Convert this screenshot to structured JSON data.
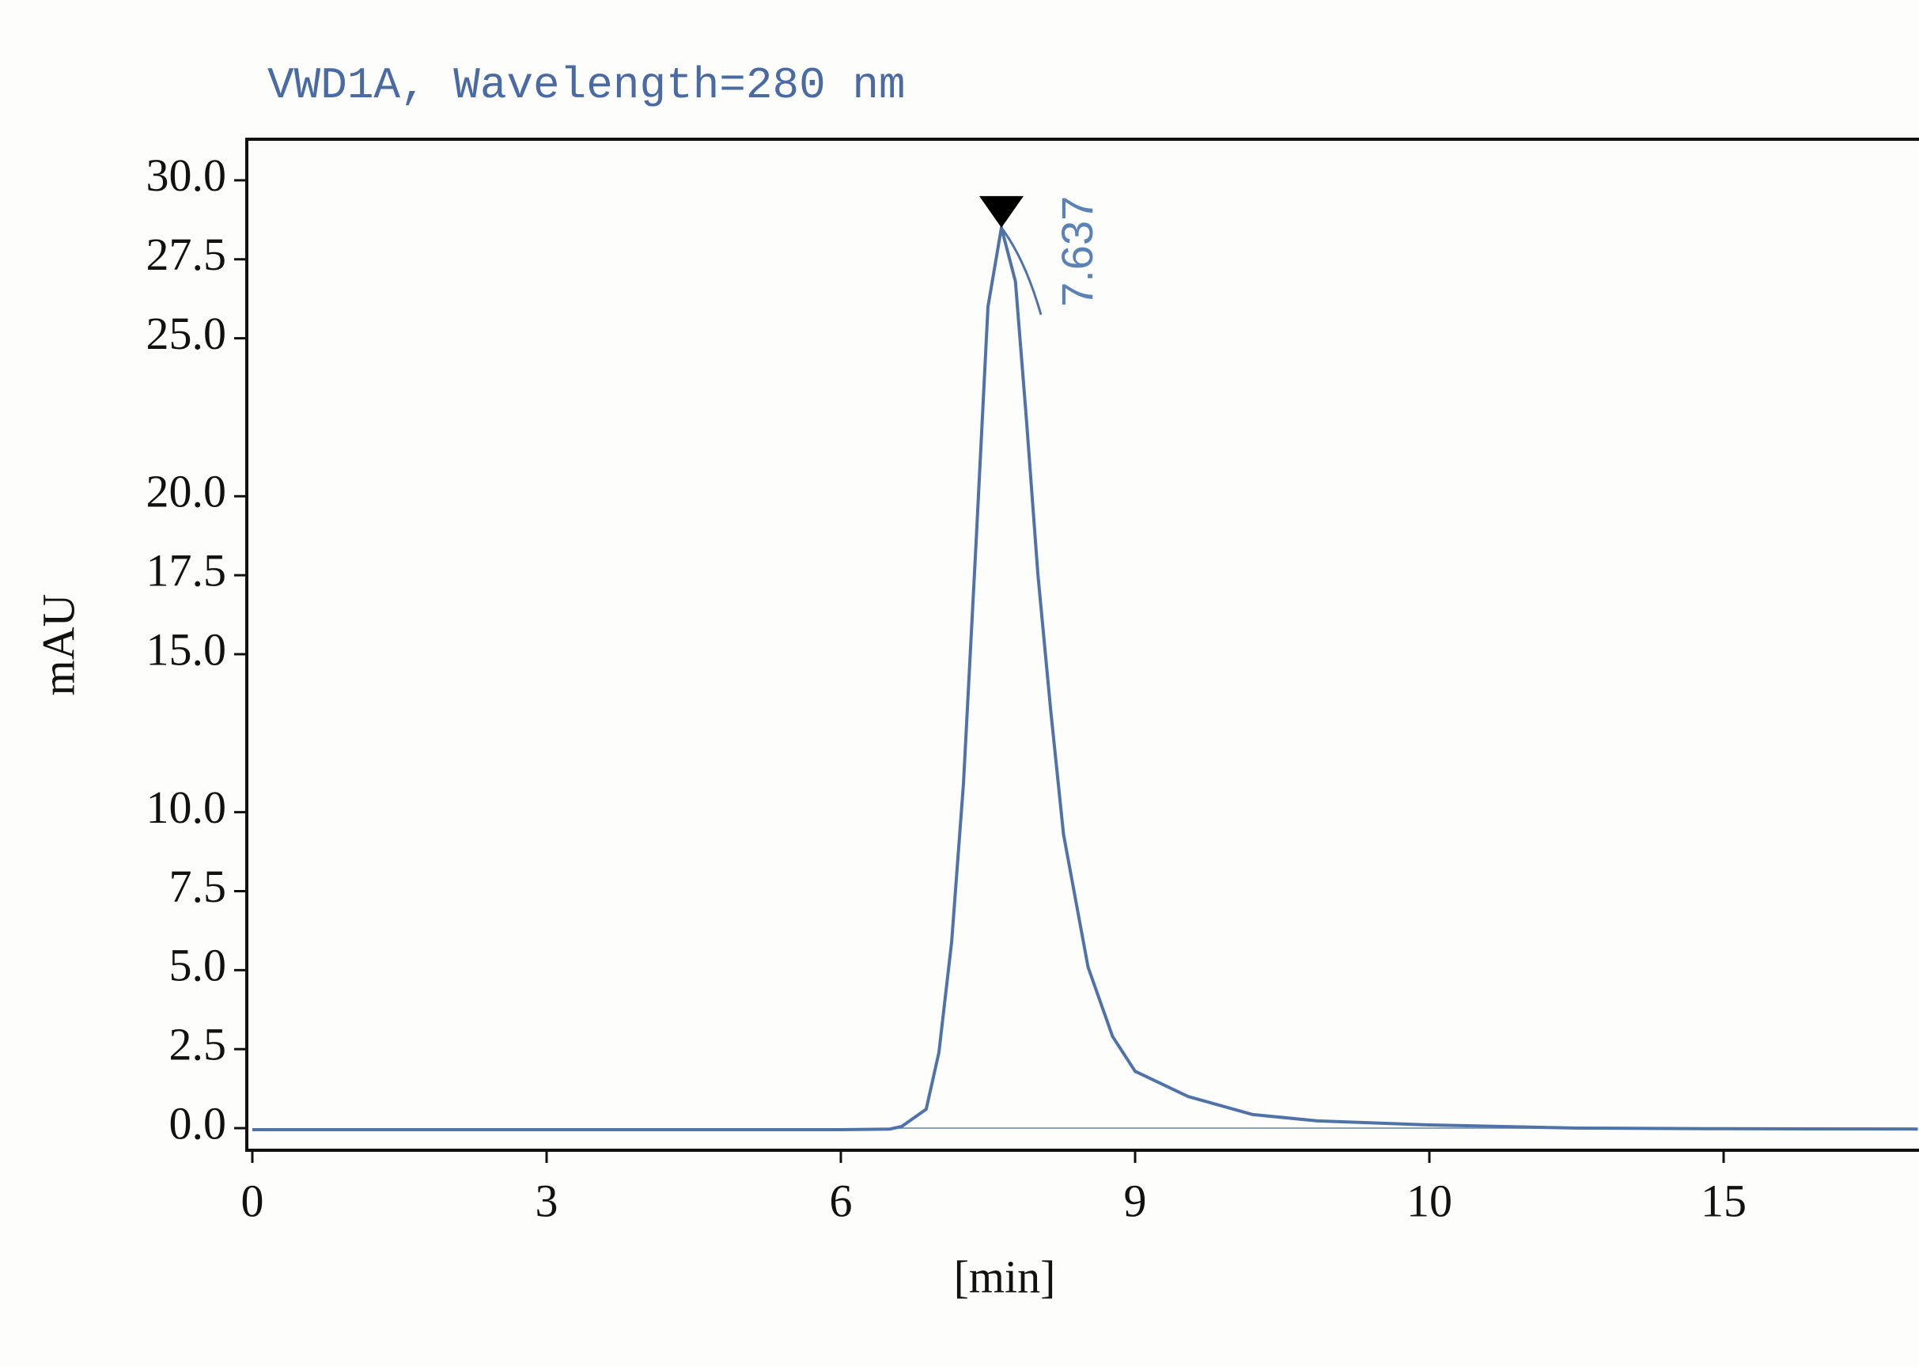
{
  "chart_data": {
    "type": "line",
    "title": "VWD1A, Wavelength=280 nm",
    "x_label": "[min]",
    "y_label": "mAU",
    "x": [
      0,
      6,
      6.5,
      6.62,
      6.87,
      7.0,
      7.13,
      7.25,
      7.38,
      7.5,
      7.637,
      7.78,
      7.89,
      8.01,
      8.14,
      8.27,
      8.52,
      8.77,
      9.0,
      9.18,
      9.4,
      9.62,
      10,
      12.5,
      15,
      18.3
    ],
    "series": [
      {
        "name": "VWD1A",
        "color": "#4f73a8",
        "values": [
          -0.05,
          -0.05,
          -0.03,
          0.05,
          0.6,
          2.4,
          5.9,
          10.9,
          18.6,
          26.0,
          28.5,
          26.8,
          22.5,
          17.5,
          13.2,
          9.3,
          5.1,
          2.9,
          1.8,
          1.0,
          0.43,
          0.23,
          0.1,
          0.0,
          -0.02,
          -0.03
        ]
      }
    ],
    "peak_x": 7.637,
    "xlim": [
      0,
      18.3
    ],
    "xticks": [
      0,
      3,
      6,
      9,
      10,
      15
    ],
    "ylim": [
      -0.7,
      31.3
    ],
    "yticks": [
      {
        "value": 0,
        "label": "0.0"
      },
      {
        "value": 2.5,
        "label": "2.5"
      },
      {
        "value": 5,
        "label": "5.0"
      },
      {
        "value": 7.5,
        "label": "7.5"
      },
      {
        "value": 10,
        "label": "10.0"
      },
      {
        "value": 15,
        "label": "15.0"
      },
      {
        "value": 17.5,
        "label": "17.5"
      },
      {
        "value": 20,
        "label": "20.0"
      },
      {
        "value": 25,
        "label": "25.0"
      },
      {
        "value": 27.5,
        "label": "27.5"
      },
      {
        "value": 30,
        "label": "30.0"
      }
    ]
  }
}
